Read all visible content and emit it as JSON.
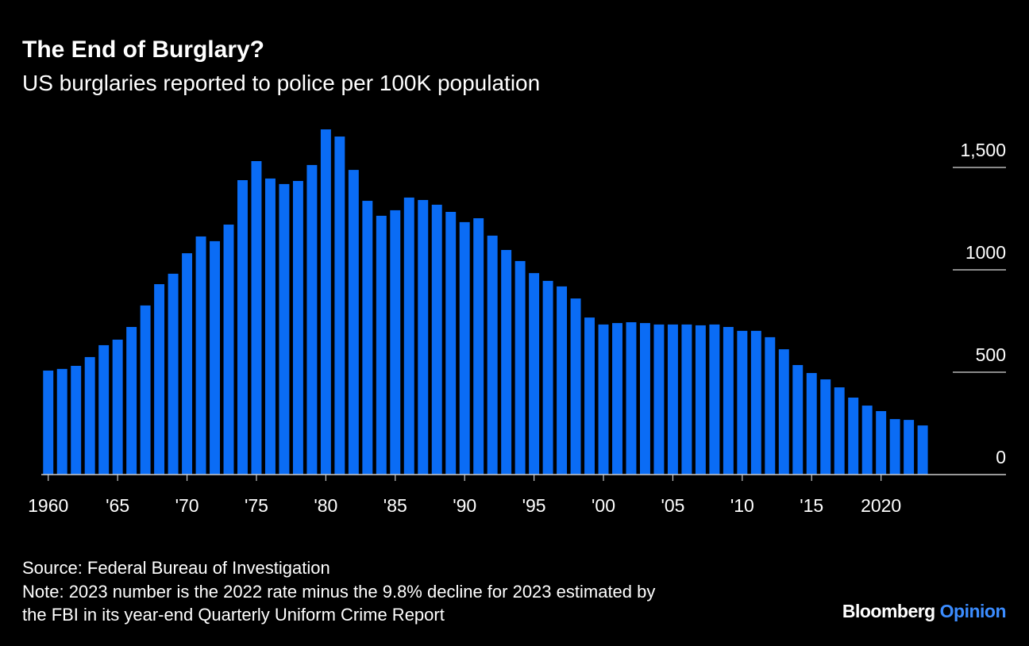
{
  "chart_data": {
    "type": "bar",
    "title": "The End of Burglary?",
    "subtitle": "US burglaries reported to police per 100K population",
    "x": [
      1960,
      1961,
      1962,
      1963,
      1964,
      1965,
      1966,
      1967,
      1968,
      1969,
      1970,
      1971,
      1972,
      1973,
      1974,
      1975,
      1976,
      1977,
      1978,
      1979,
      1980,
      1981,
      1982,
      1983,
      1984,
      1985,
      1986,
      1987,
      1988,
      1989,
      1990,
      1991,
      1992,
      1993,
      1994,
      1995,
      1996,
      1997,
      1998,
      1999,
      2000,
      2001,
      2002,
      2003,
      2004,
      2005,
      2006,
      2007,
      2008,
      2009,
      2010,
      2011,
      2012,
      2013,
      2014,
      2015,
      2016,
      2017,
      2018,
      2019,
      2020,
      2021,
      2022,
      2023
    ],
    "values": [
      508,
      516,
      531,
      574,
      632,
      659,
      721,
      826,
      930,
      981,
      1081,
      1163,
      1140,
      1221,
      1438,
      1531,
      1446,
      1419,
      1434,
      1512,
      1686,
      1651,
      1488,
      1337,
      1264,
      1291,
      1353,
      1341,
      1318,
      1283,
      1233,
      1252,
      1167,
      1097,
      1043,
      984,
      946,
      919,
      860,
      767,
      733,
      740,
      744,
      740,
      733,
      733,
      733,
      729,
      733,
      721,
      702,
      702,
      671,
      612,
      535,
      496,
      465,
      426,
      376,
      337,
      310,
      271,
      267,
      240
    ],
    "color": "#0a6cf5",
    "xlim": [
      1959.5,
      2029
    ],
    "xticks": [
      1960,
      {
        "value": 1965,
        "label": "'65"
      },
      {
        "value": 1970,
        "label": "'70"
      },
      {
        "value": 1975,
        "label": "'75"
      },
      {
        "value": 1980,
        "label": "'80"
      },
      {
        "value": 1985,
        "label": "'85"
      },
      {
        "value": 1990,
        "label": "'90"
      },
      {
        "value": 1995,
        "label": "'95"
      },
      {
        "value": 2000,
        "label": "'00"
      },
      {
        "value": 2005,
        "label": "'05"
      },
      {
        "value": 2010,
        "label": "'10"
      },
      {
        "value": 2015,
        "label": "'15"
      },
      2020
    ],
    "ylim": [
      0,
      1700
    ],
    "yticks": [
      0,
      500,
      1000,
      {
        "value": 1500,
        "label": "1,500"
      }
    ],
    "source": "Source: Federal Bureau of Investigation",
    "note": [
      "Note: 2023 number is the 2022 rate minus the 9.8% decline for 2023 estimated by",
      "the FBI in its year-end Quarterly Uniform Crime Report"
    ],
    "brand": {
      "name": "Bloomberg",
      "product": "Opinion"
    }
  }
}
